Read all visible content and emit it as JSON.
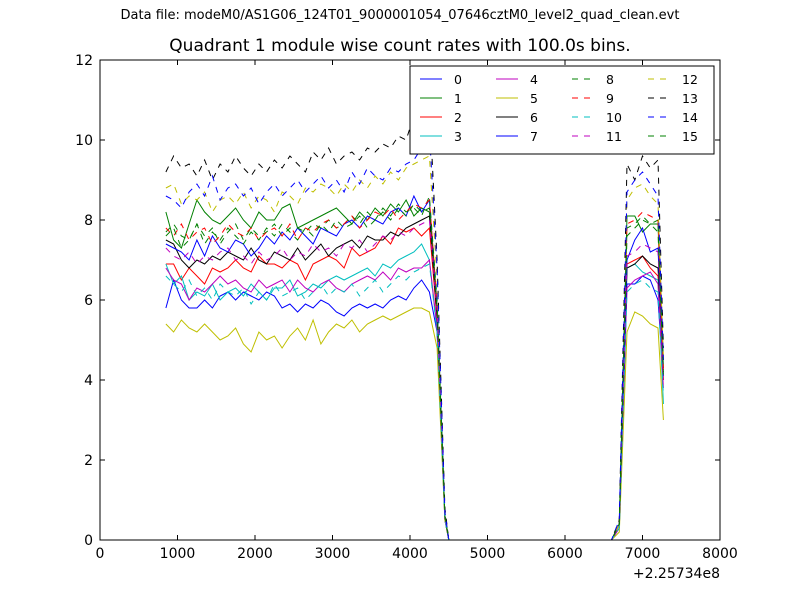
{
  "header": {
    "suptitle": "Data file: modeM0/AS1G06_124T01_9000001054_07646cztM0_level2_quad_clean.evt",
    "title": "Quadrant 1 module wise count rates with 100.0s bins."
  },
  "chart_data": {
    "type": "line",
    "title": "Quadrant 1 module wise count rates with 100.0s bins.",
    "xlabel": "",
    "ylabel": "",
    "x_offset_label": "+2.25734e8",
    "xlim": [
      0,
      8000
    ],
    "ylim": [
      0,
      12
    ],
    "xticks": [
      0,
      1000,
      2000,
      3000,
      4000,
      5000,
      6000,
      7000,
      8000
    ],
    "yticks": [
      0,
      2,
      4,
      6,
      8,
      10,
      12
    ],
    "grid": false,
    "legend_position": "top-right",
    "legend_columns": 4,
    "x": [
      850,
      950,
      1050,
      1150,
      1250,
      1350,
      1450,
      1550,
      1650,
      1750,
      1850,
      1950,
      2050,
      2150,
      2250,
      2350,
      2450,
      2550,
      2650,
      2750,
      2850,
      2950,
      3050,
      3150,
      3250,
      3350,
      3450,
      3550,
      3650,
      3750,
      3850,
      3950,
      4050,
      4150,
      4250,
      4350,
      4450,
      4500,
      6600,
      6700,
      6800,
      6900,
      7000,
      7100,
      7200,
      7270
    ],
    "series": [
      {
        "name": "0",
        "color": "#0000ff",
        "dash": "solid",
        "values": [
          5.8,
          6.5,
          6.0,
          5.8,
          5.8,
          6.0,
          5.8,
          6.1,
          6.2,
          6.0,
          6.2,
          6.1,
          6.0,
          6.2,
          6.1,
          5.8,
          5.9,
          5.7,
          5.9,
          5.8,
          6.0,
          5.9,
          5.7,
          5.6,
          5.8,
          5.9,
          5.8,
          5.9,
          5.8,
          6.0,
          6.1,
          6.0,
          6.3,
          6.5,
          6.2,
          5.2,
          0.5,
          0,
          0,
          0.3,
          6.4,
          6.4,
          6.6,
          6.5,
          6.0,
          4.0
        ]
      },
      {
        "name": "1",
        "color": "#008000",
        "dash": "solid",
        "values": [
          8.2,
          7.5,
          7.3,
          7.9,
          8.5,
          8.2,
          8.0,
          7.9,
          8.1,
          8.3,
          8.0,
          7.8,
          8.2,
          8.0,
          8.0,
          8.3,
          8.4,
          7.8,
          7.9,
          8.0,
          8.1,
          8.2,
          8.3,
          8.1,
          7.9,
          8.2,
          8.0,
          8.3,
          8.1,
          8.4,
          8.2,
          8.5,
          8.1,
          8.3,
          8.2,
          5.5,
          0.6,
          0,
          0,
          0.4,
          8.1,
          8.1,
          7.7,
          7.9,
          7.9,
          4.3
        ]
      },
      {
        "name": "2",
        "color": "#ff0000",
        "dash": "solid",
        "values": [
          6.9,
          6.9,
          6.5,
          6.8,
          6.6,
          6.4,
          6.8,
          6.7,
          6.8,
          7.0,
          6.8,
          6.7,
          7.1,
          6.9,
          6.9,
          6.8,
          7.0,
          6.9,
          6.5,
          6.9,
          7.0,
          7.1,
          7.0,
          6.8,
          7.3,
          7.1,
          7.2,
          7.3,
          7.6,
          7.4,
          7.8,
          7.7,
          7.8,
          7.6,
          7.8,
          5.5,
          0.6,
          0,
          0,
          0.4,
          6.9,
          7.0,
          7.1,
          6.8,
          6.6,
          4.0
        ]
      },
      {
        "name": "3",
        "color": "#00bfbf",
        "dash": "solid",
        "values": [
          6.9,
          6.4,
          6.6,
          6.0,
          6.2,
          6.1,
          6.4,
          6.0,
          6.2,
          6.3,
          6.1,
          6.4,
          6.2,
          6.0,
          6.3,
          6.3,
          6.5,
          6.1,
          6.2,
          6.4,
          6.3,
          6.5,
          6.6,
          6.5,
          6.6,
          6.7,
          6.8,
          6.6,
          6.9,
          6.8,
          7.0,
          7.1,
          7.2,
          7.4,
          7.0,
          5.2,
          0.5,
          0,
          0,
          0.3,
          6.8,
          6.9,
          6.7,
          6.6,
          6.5,
          3.4
        ]
      },
      {
        "name": "4",
        "color": "#bf00bf",
        "dash": "solid",
        "values": [
          6.8,
          6.5,
          6.4,
          6.0,
          6.3,
          6.2,
          6.4,
          6.6,
          6.4,
          6.5,
          6.3,
          6.2,
          6.5,
          6.3,
          6.4,
          6.5,
          6.2,
          6.5,
          6.3,
          6.2,
          6.4,
          6.5,
          6.3,
          6.2,
          6.4,
          6.5,
          6.6,
          6.5,
          6.7,
          6.5,
          6.8,
          6.7,
          6.8,
          6.8,
          7.0,
          5.3,
          0.5,
          0,
          0,
          0.3,
          6.3,
          6.5,
          6.6,
          6.7,
          6.4,
          3.8
        ]
      },
      {
        "name": "5",
        "color": "#bfbf00",
        "dash": "solid",
        "values": [
          5.4,
          5.2,
          5.5,
          5.3,
          5.2,
          5.4,
          5.2,
          5.0,
          5.1,
          5.3,
          4.9,
          4.7,
          5.2,
          5.0,
          5.1,
          4.8,
          5.1,
          5.3,
          5.0,
          5.5,
          4.9,
          5.2,
          5.4,
          5.3,
          5.5,
          5.2,
          5.4,
          5.5,
          5.6,
          5.5,
          5.6,
          5.7,
          5.8,
          5.8,
          5.7,
          4.8,
          0.5,
          0,
          0,
          0.2,
          5.2,
          5.7,
          5.6,
          5.4,
          5.3,
          3.0
        ]
      },
      {
        "name": "6",
        "color": "#000000",
        "dash": "solid",
        "values": [
          7.5,
          7.4,
          7.0,
          6.8,
          7.0,
          6.9,
          7.1,
          7.0,
          7.2,
          7.1,
          7.0,
          7.3,
          7.0,
          6.9,
          7.2,
          7.1,
          7.0,
          7.3,
          7.0,
          7.2,
          7.4,
          7.1,
          7.3,
          7.4,
          7.5,
          7.3,
          7.6,
          7.5,
          7.5,
          7.7,
          7.6,
          7.8,
          7.9,
          8.0,
          8.1,
          5.6,
          0.6,
          0,
          0,
          0.4,
          6.8,
          6.9,
          7.1,
          6.9,
          6.8,
          4.5
        ]
      },
      {
        "name": "7",
        "color": "#0000ff",
        "dash": "solid",
        "values": [
          7.4,
          7.3,
          7.2,
          7.0,
          7.5,
          7.1,
          7.6,
          7.3,
          7.2,
          7.5,
          7.4,
          7.1,
          7.3,
          7.6,
          7.4,
          7.7,
          7.5,
          7.8,
          7.6,
          7.4,
          7.8,
          7.7,
          7.6,
          7.9,
          8.0,
          7.8,
          8.1,
          8.0,
          7.9,
          8.2,
          8.3,
          8.1,
          8.6,
          8.2,
          8.5,
          5.8,
          0.6,
          0,
          0,
          0.4,
          7.0,
          7.5,
          7.8,
          7.2,
          7.3,
          4.1
        ]
      },
      {
        "name": "8",
        "color": "#008000",
        "dash": "dashed",
        "values": [
          7.7,
          7.9,
          7.6,
          7.5,
          7.9,
          7.6,
          7.8,
          7.4,
          7.7,
          7.9,
          7.5,
          7.8,
          7.6,
          7.7,
          7.9,
          7.6,
          7.8,
          7.8,
          7.7,
          7.9,
          7.8,
          8.0,
          7.8,
          7.9,
          8.1,
          7.9,
          8.2,
          8.0,
          8.3,
          8.1,
          8.4,
          8.2,
          8.3,
          8.1,
          8.6,
          6.0,
          0.6,
          0,
          0,
          0.4,
          7.8,
          7.9,
          8.1,
          7.9,
          8.0,
          4.2
        ]
      },
      {
        "name": "9",
        "color": "#ff0000",
        "dash": "dashed",
        "values": [
          7.8,
          7.6,
          7.9,
          7.5,
          7.7,
          7.8,
          7.4,
          7.6,
          7.9,
          7.7,
          7.6,
          7.8,
          7.5,
          7.7,
          7.8,
          7.6,
          7.9,
          7.5,
          7.8,
          7.7,
          7.9,
          8.0,
          7.8,
          7.9,
          8.1,
          7.8,
          8.0,
          8.2,
          8.1,
          8.3,
          8.0,
          8.2,
          8.4,
          8.3,
          8.5,
          5.9,
          0.6,
          0,
          0,
          0.4,
          7.9,
          8.0,
          8.2,
          8.1,
          8.0,
          4.2
        ]
      },
      {
        "name": "10",
        "color": "#00bfbf",
        "dash": "dashed",
        "values": [
          6.6,
          6.4,
          6.2,
          6.5,
          6.1,
          6.3,
          6.0,
          6.4,
          6.2,
          6.1,
          6.3,
          5.9,
          6.2,
          6.0,
          6.4,
          6.1,
          6.2,
          6.3,
          6.0,
          6.2,
          6.4,
          6.1,
          6.3,
          6.2,
          6.4,
          6.1,
          6.3,
          6.5,
          6.2,
          6.4,
          6.6,
          6.5,
          6.7,
          6.8,
          6.9,
          5.2,
          0.5,
          0,
          0,
          0.3,
          6.2,
          6.4,
          6.5,
          6.3,
          6.2,
          3.6
        ]
      },
      {
        "name": "11",
        "color": "#bf00bf",
        "dash": "dashed",
        "values": [
          7.3,
          7.1,
          7.0,
          7.2,
          6.9,
          7.1,
          7.0,
          7.2,
          7.3,
          7.0,
          7.1,
          6.9,
          7.2,
          7.0,
          7.1,
          7.3,
          7.0,
          7.2,
          7.1,
          7.4,
          7.2,
          7.3,
          7.1,
          7.4,
          7.3,
          7.5,
          7.2,
          7.4,
          7.6,
          7.5,
          7.7,
          7.6,
          7.8,
          7.9,
          8.0,
          5.7,
          0.6,
          0,
          0,
          0.4,
          7.1,
          7.2,
          7.4,
          7.3,
          7.2,
          4.0
        ]
      },
      {
        "name": "12",
        "color": "#bfbf00",
        "dash": "dashed",
        "values": [
          8.8,
          8.9,
          8.4,
          8.6,
          8.5,
          8.7,
          8.2,
          8.5,
          8.6,
          8.4,
          8.7,
          8.3,
          8.6,
          8.5,
          8.2,
          8.7,
          8.6,
          8.4,
          8.8,
          8.7,
          8.9,
          8.8,
          8.6,
          8.9,
          8.7,
          9.0,
          8.8,
          9.1,
          8.9,
          9.2,
          9.0,
          9.3,
          9.4,
          9.5,
          9.6,
          6.5,
          0.7,
          0,
          0,
          0.4,
          8.5,
          8.8,
          8.9,
          8.6,
          8.4,
          4.6
        ]
      },
      {
        "name": "13",
        "color": "#000000",
        "dash": "dashed",
        "values": [
          9.2,
          9.6,
          9.3,
          9.4,
          9.1,
          9.5,
          9.0,
          9.4,
          9.2,
          9.6,
          9.3,
          9.1,
          9.4,
          9.2,
          9.5,
          9.3,
          9.6,
          9.4,
          9.2,
          9.7,
          9.5,
          9.8,
          9.4,
          9.6,
          9.7,
          9.5,
          9.8,
          9.7,
          9.9,
          9.8,
          10.1,
          10.0,
          10.6,
          10.4,
          10.9,
          7.0,
          0.8,
          0,
          0,
          0.5,
          9.4,
          9.0,
          9.6,
          9.3,
          9.5,
          4.8
        ]
      },
      {
        "name": "14",
        "color": "#0000ff",
        "dash": "dashed",
        "values": [
          8.6,
          8.5,
          8.3,
          8.7,
          8.9,
          8.6,
          9.1,
          8.5,
          8.8,
          8.9,
          8.6,
          8.8,
          8.4,
          8.7,
          8.9,
          8.6,
          8.8,
          9.0,
          8.7,
          8.9,
          9.1,
          8.8,
          9.0,
          8.7,
          9.2,
          8.9,
          9.3,
          9.1,
          9.0,
          9.3,
          9.2,
          9.4,
          9.5,
          9.8,
          10.2,
          6.8,
          0.7,
          0,
          0,
          0.5,
          8.7,
          9.0,
          9.2,
          8.9,
          8.6,
          4.5
        ]
      },
      {
        "name": "15",
        "color": "#008000",
        "dash": "dashed",
        "values": [
          7.6,
          7.8,
          7.3,
          7.5,
          7.9,
          7.4,
          7.7,
          7.5,
          7.8,
          7.6,
          7.4,
          7.7,
          7.5,
          7.8,
          7.6,
          7.9,
          7.7,
          7.5,
          7.8,
          7.6,
          7.9,
          7.7,
          8.0,
          7.8,
          7.9,
          8.1,
          7.8,
          8.0,
          8.2,
          8.0,
          8.3,
          8.1,
          8.4,
          8.2,
          8.3,
          5.8,
          0.6,
          0,
          0,
          0.4,
          7.6,
          7.8,
          8.0,
          7.9,
          7.7,
          4.1
        ]
      }
    ]
  }
}
